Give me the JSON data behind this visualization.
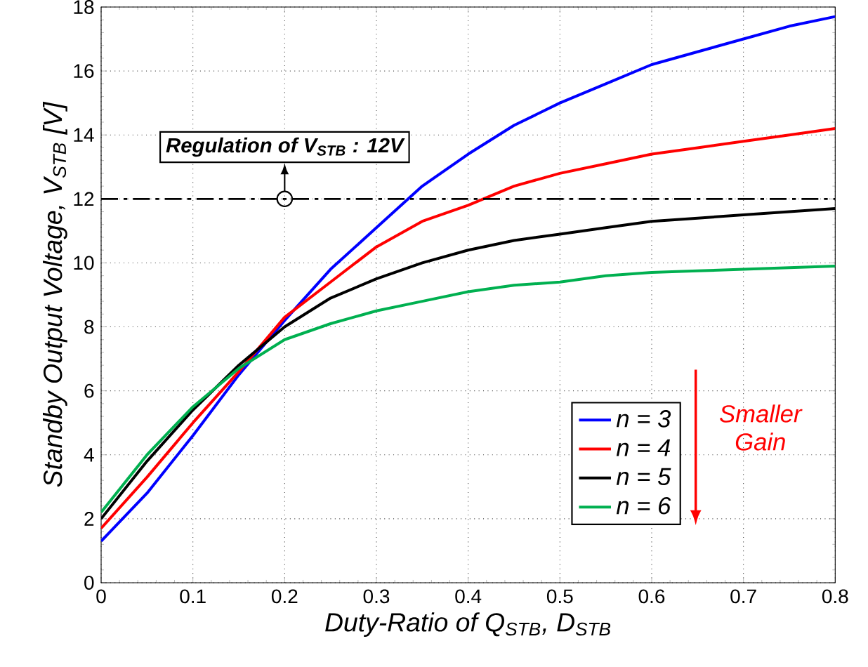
{
  "chart_data": {
    "type": "line",
    "xlabel": "Duty-Ratio of Q$_{STB}$, D$_{STB}$",
    "ylabel": "Standby Output Voltage, V$_{STB}$ [V]",
    "x": [
      0,
      0.05,
      0.1,
      0.15,
      0.2,
      0.25,
      0.3,
      0.35,
      0.4,
      0.45,
      0.5,
      0.55,
      0.6,
      0.65,
      0.7,
      0.75,
      0.8
    ],
    "series": [
      {
        "name": "n = 3",
        "color": "#0000ff",
        "values": [
          1.3,
          2.8,
          4.6,
          6.5,
          8.2,
          9.8,
          11.1,
          12.4,
          13.4,
          14.3,
          15.0,
          15.6,
          16.2,
          16.6,
          17.0,
          17.4,
          17.7
        ]
      },
      {
        "name": "n = 4",
        "color": "#ff0000",
        "values": [
          1.7,
          3.3,
          5.0,
          6.6,
          8.3,
          9.4,
          10.5,
          11.3,
          11.8,
          12.4,
          12.8,
          13.1,
          13.4,
          13.6,
          13.8,
          14.0,
          14.2
        ]
      },
      {
        "name": "n = 5",
        "color": "#000000",
        "values": [
          2.0,
          3.8,
          5.4,
          6.8,
          8.0,
          8.9,
          9.5,
          10.0,
          10.4,
          10.7,
          10.9,
          11.1,
          11.3,
          11.4,
          11.5,
          11.6,
          11.7
        ]
      },
      {
        "name": "n = 6",
        "color": "#00b050",
        "values": [
          2.2,
          4.0,
          5.5,
          6.7,
          7.6,
          8.1,
          8.5,
          8.8,
          9.1,
          9.3,
          9.4,
          9.6,
          9.7,
          9.75,
          9.8,
          9.85,
          9.9
        ]
      }
    ],
    "xlim": [
      0,
      0.8
    ],
    "ylim": [
      0,
      18
    ],
    "xticks": [
      0,
      0.1,
      0.2,
      0.3,
      0.4,
      0.5,
      0.6,
      0.7,
      0.8
    ],
    "yticks": [
      0,
      2,
      4,
      6,
      8,
      10,
      12,
      14,
      16,
      18
    ],
    "grid": true,
    "legend": "bottom right",
    "line_style": "solid",
    "ref_lines": [
      {
        "axis": "y",
        "value": 12,
        "label": "Regulation of V$_{STB}$ : 12V",
        "color": "#000000",
        "line_style": "dashed"
      }
    ],
    "annotations": [
      "Smaller Gain"
    ]
  }
}
